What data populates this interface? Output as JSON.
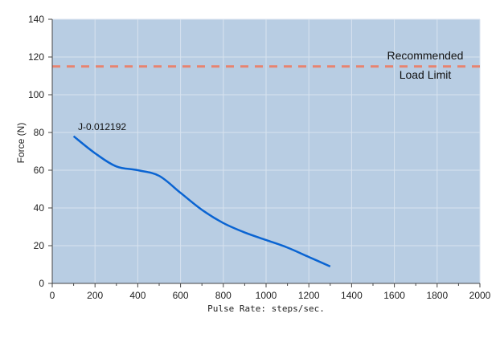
{
  "chart_data": {
    "type": "line",
    "xlabel": "Pulse Rate: steps/sec.",
    "ylabel": "Force (N)",
    "xlim": [
      0,
      2000
    ],
    "ylim": [
      0,
      140
    ],
    "x_ticks": [
      0,
      200,
      400,
      600,
      800,
      1000,
      1200,
      1400,
      1600,
      1800,
      2000
    ],
    "y_ticks": [
      0,
      20,
      40,
      60,
      80,
      100,
      120,
      140
    ],
    "x_tick_labels": [
      "0",
      "200",
      "400",
      "600",
      "800",
      "1000",
      "1200",
      "1400",
      "1600",
      "1800",
      "2000"
    ],
    "y_tick_labels": [
      "0",
      "20",
      "40",
      "60",
      "80",
      "100",
      "120",
      "140"
    ],
    "grid": true,
    "series": [
      {
        "name": "J-0.012192",
        "color": "#0a64d2",
        "x": [
          100,
          200,
          300,
          400,
          500,
          600,
          700,
          800,
          900,
          1000,
          1100,
          1200,
          1300
        ],
        "y": [
          78,
          69,
          62,
          60,
          57,
          48,
          39,
          32,
          27,
          23,
          19,
          14,
          9
        ]
      }
    ],
    "reference_line": {
      "y": 115,
      "color": "#e8836f",
      "label_line1": "Recommended",
      "label_line2": "Load Limit"
    },
    "plot_background": "#b8cde3"
  }
}
